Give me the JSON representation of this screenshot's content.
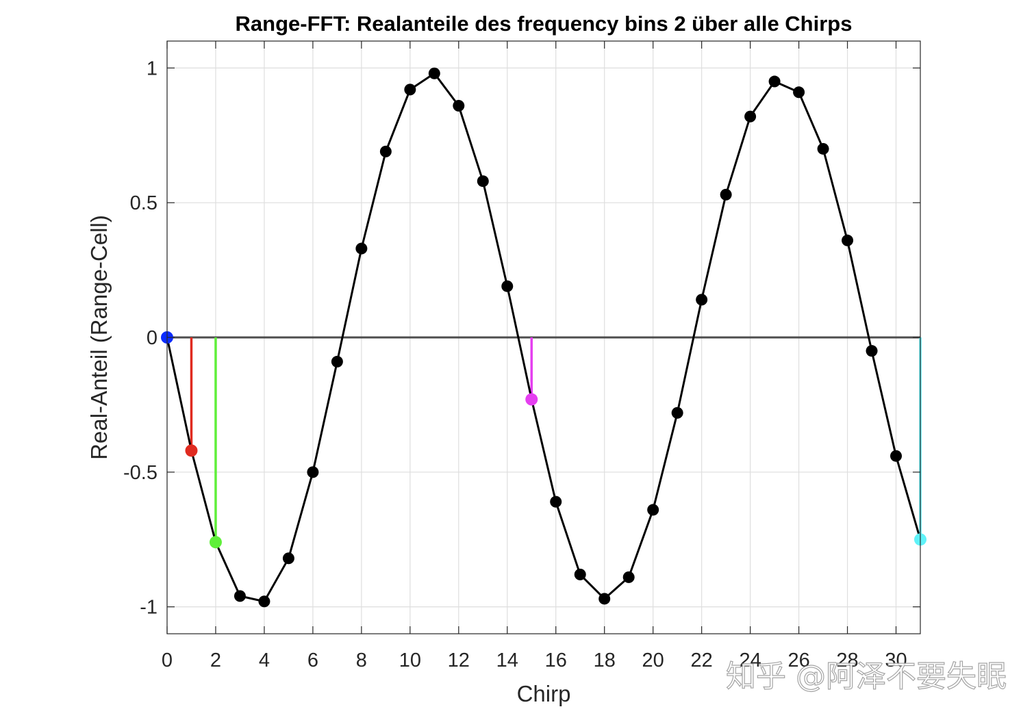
{
  "chart_data": {
    "type": "line",
    "title": "Range-FFT: Realanteile des frequency bins 2 über alle Chirps",
    "xlabel": "Chirp",
    "ylabel": "Real-Anteil (Range-Cell)",
    "xlim": [
      0,
      31
    ],
    "ylim": [
      -1.1,
      1.1
    ],
    "xticks": [
      0,
      2,
      4,
      6,
      8,
      10,
      12,
      14,
      16,
      18,
      20,
      22,
      24,
      26,
      28,
      30
    ],
    "yticks": [
      -1,
      -0.5,
      0,
      0.5,
      1
    ],
    "ytick_labels": [
      "-1",
      "-0.5",
      "0",
      "0.5",
      "1"
    ],
    "grid": true,
    "zero_line": true,
    "series": [
      {
        "name": "Realanteil",
        "color": "#000000",
        "x": [
          0,
          1,
          2,
          3,
          4,
          5,
          6,
          7,
          8,
          9,
          10,
          11,
          12,
          13,
          14,
          15,
          16,
          17,
          18,
          19,
          20,
          21,
          22,
          23,
          24,
          25,
          26,
          27,
          28,
          29,
          30,
          31
        ],
        "values": [
          0,
          -0.42,
          -0.76,
          -0.96,
          -0.98,
          -0.82,
          -0.5,
          -0.09,
          0.33,
          0.69,
          0.92,
          0.98,
          0.86,
          0.58,
          0.19,
          -0.23,
          -0.61,
          -0.88,
          -0.97,
          -0.89,
          -0.64,
          -0.28,
          0.14,
          0.53,
          0.82,
          0.95,
          0.91,
          0.7,
          0.36,
          -0.05,
          -0.44,
          -0.75
        ]
      }
    ],
    "highlights": [
      {
        "x": 0,
        "value": 0,
        "color": "#0a2bff"
      },
      {
        "x": 1,
        "value": -0.42,
        "color": "#e02b20"
      },
      {
        "x": 2,
        "value": -0.76,
        "color": "#5fef3a"
      },
      {
        "x": 15,
        "value": -0.23,
        "color": "#e53ff0"
      },
      {
        "x": 31,
        "value": -0.75,
        "color": "#5ff2f8"
      }
    ]
  },
  "watermark": "知乎 @阿泽不要失眠"
}
